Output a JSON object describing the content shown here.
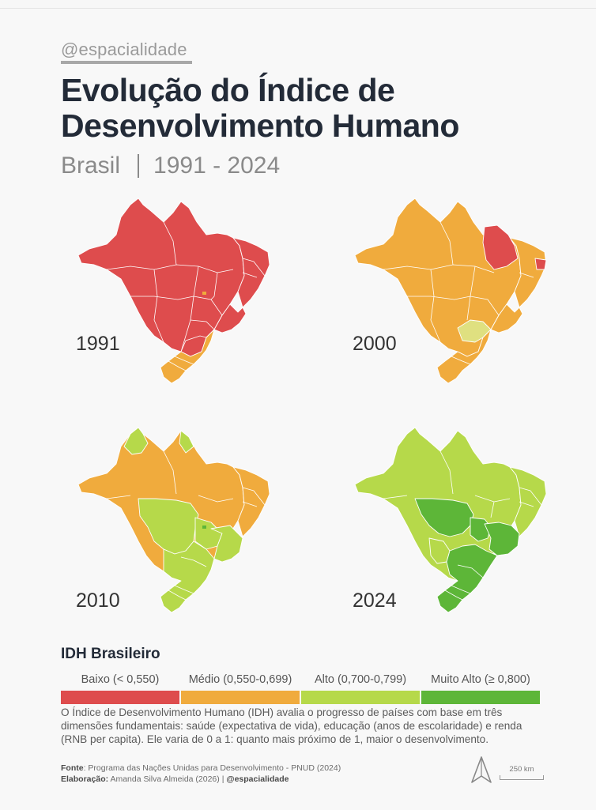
{
  "handle": "@espacialidade",
  "title": "Evolução do Índice de Desenvolvimento Humano",
  "subtitle": {
    "country": "Brasil",
    "period": "1991 - 2024"
  },
  "colors": {
    "baixo": "#de4c4d",
    "medio": "#f0ab3d",
    "alto": "#b6d94a",
    "muito_alto": "#5db638",
    "alto_light": "#dfe080"
  },
  "maps": [
    {
      "year": "1991"
    },
    {
      "year": "2000"
    },
    {
      "year": "2010"
    },
    {
      "year": "2024"
    }
  ],
  "legend": {
    "title": "IDH Brasileiro",
    "items": [
      {
        "label": "Baixo (< 0,550)",
        "color": "#de4c4d"
      },
      {
        "label": "Médio (0,550-0,699)",
        "color": "#f0ab3d"
      },
      {
        "label": "Alto (0,700-0,799)",
        "color": "#b6d94a"
      },
      {
        "label": "Muito Alto (≥ 0,800)",
        "color": "#5db638"
      }
    ]
  },
  "description": "O Índice de Desenvolvimento Humano (IDH) avalia o progresso de países com base em três dimensões fundamentais: saúde (expectativa de vida), educação (anos de escolaridade) e renda (RNB per capita).  Ele varia de 0 a 1: quanto mais próximo de 1, maior o desenvolvimento.",
  "footer": {
    "source_label": "Fonte",
    "source": ": Programa das Nações Unidas para Desenvolvimento - PNUD (2024)",
    "author_label": "Elaboração:",
    "author": " Amanda Silva Almeida (2026) | ",
    "author_handle": "@espacialidade"
  },
  "scale": "250 km"
}
